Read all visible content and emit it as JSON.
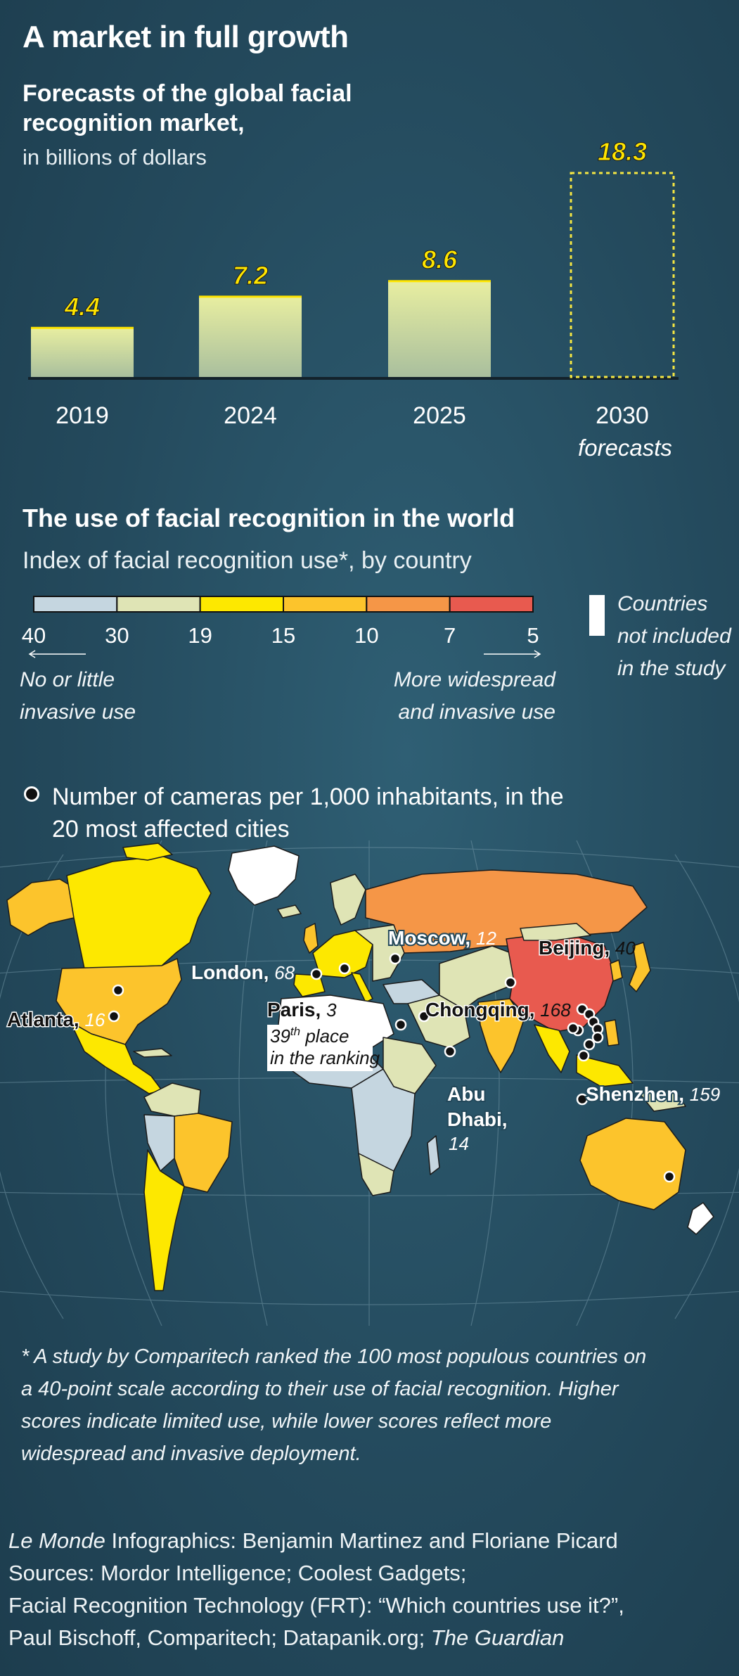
{
  "title": "A market in full growth",
  "chart_data": {
    "type": "bar",
    "title": "Forecasts of the global facial recognition market,",
    "subtitle": "in billions of dollars",
    "categories": [
      "2019",
      "2024",
      "2025",
      "2030"
    ],
    "category_notes": [
      "",
      "",
      "",
      "forecasts"
    ],
    "values": [
      4.4,
      7.2,
      8.6,
      18.3
    ],
    "value_labels": [
      "4.4",
      "7.2",
      "8.6",
      "18.3"
    ],
    "forecast": [
      false,
      false,
      false,
      true
    ],
    "ylim": [
      0,
      18.3
    ],
    "colors": {
      "bar_top": "#e8eea0",
      "bar_bottom": "#a9bf9e",
      "value_label": "#ffe500",
      "forecast_outline": "#f5e642"
    }
  },
  "map_section": {
    "title": "The use of facial recognition in the world",
    "subtitle": "Index of facial recognition use*, by country",
    "scale_ticks": [
      "40",
      "30",
      "19",
      "15",
      "10",
      "7",
      "5"
    ],
    "scale_colors": [
      "#c5d6e0",
      "#dfe4b5",
      "#fde800",
      "#fcc42c",
      "#f59647",
      "#e85a4f"
    ],
    "scale_left_note": "No or little invasive use",
    "scale_right_note": "More widespread and invasive use",
    "not_included_label": "Countries not included in the study",
    "cameras_legend": "Number of cameras per 1,000 inhabitants, in the 20 most affected cities",
    "cities": [
      {
        "name": "Moscow",
        "value": "12"
      },
      {
        "name": "Beijing",
        "value": "40"
      },
      {
        "name": "London",
        "value": "68"
      },
      {
        "name": "Atlanta",
        "value": "16"
      },
      {
        "name": "Paris",
        "value": "3",
        "note_prefix": "39",
        "note_sup": "th",
        "note_suffix": " place",
        "note_line2": "in the ranking"
      },
      {
        "name": "Chongqing",
        "value": "168"
      },
      {
        "name": "Shenzhen",
        "value": "159"
      },
      {
        "name": "Abu Dhabi",
        "value": "14"
      }
    ]
  },
  "footnote": "* A study by Comparitech ranked the 100 most populous countries on a 40-point scale according to their use of facial recognition. Higher scores indicate limited use, while lower scores reflect more widespread and invasive deployment.",
  "credits": {
    "publisher": "Le Monde",
    "infographics": " Infographics: Benjamin Martinez and Floriane Picard",
    "sources_1": "Sources: Mordor Intelligence; Coolest Gadgets;",
    "sources_2": "Facial Recognition Technology (FRT): “Which countries use it?”,",
    "sources_3": "Paul Bischoff, Comparitech; Datapanik.org; ",
    "sources_3_italic": "The Guardian"
  }
}
